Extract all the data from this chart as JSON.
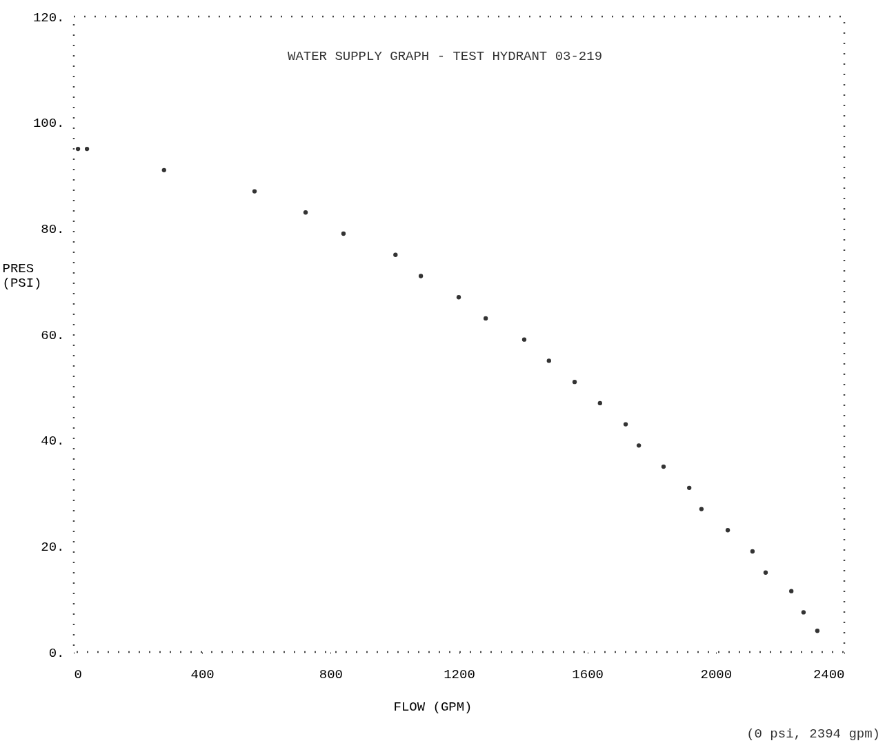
{
  "chart_data": {
    "type": "scatter",
    "title": "WATER SUPPLY GRAPH - TEST HYDRANT 03-219",
    "xlabel": "FLOW (GPM)",
    "ylabel": "PRES (PSI)",
    "x": [
      13,
      41,
      281,
      563,
      722,
      840,
      1002,
      1081,
      1199,
      1283,
      1403,
      1480,
      1560,
      1639,
      1719,
      1760,
      1837,
      1917,
      1955,
      2037,
      2114,
      2155,
      2235,
      2273,
      2316
    ],
    "values": [
      95,
      95,
      91,
      87,
      83,
      79,
      75,
      71,
      67,
      63,
      59,
      55,
      51,
      47,
      43,
      39,
      35,
      31,
      27,
      23,
      19,
      15,
      11.5,
      7.5,
      4
    ],
    "color": "#333333",
    "marker": "circle",
    "grid": false,
    "xlim": [
      0,
      2400
    ],
    "xticks": [
      0,
      400,
      800,
      1200,
      1600,
      2000,
      2400
    ],
    "ylim": [
      0,
      120
    ],
    "yticks": [
      {
        "value": 0,
        "label": "0."
      },
      {
        "value": 20,
        "label": "20."
      },
      {
        "value": 40,
        "label": "40."
      },
      {
        "value": 60,
        "label": "60."
      },
      {
        "value": 80,
        "label": "80."
      },
      {
        "value": 100,
        "label": "100."
      },
      {
        "value": 120,
        "label": "120."
      }
    ],
    "annotations": [
      "(0 psi, 2394 gpm)"
    ]
  }
}
